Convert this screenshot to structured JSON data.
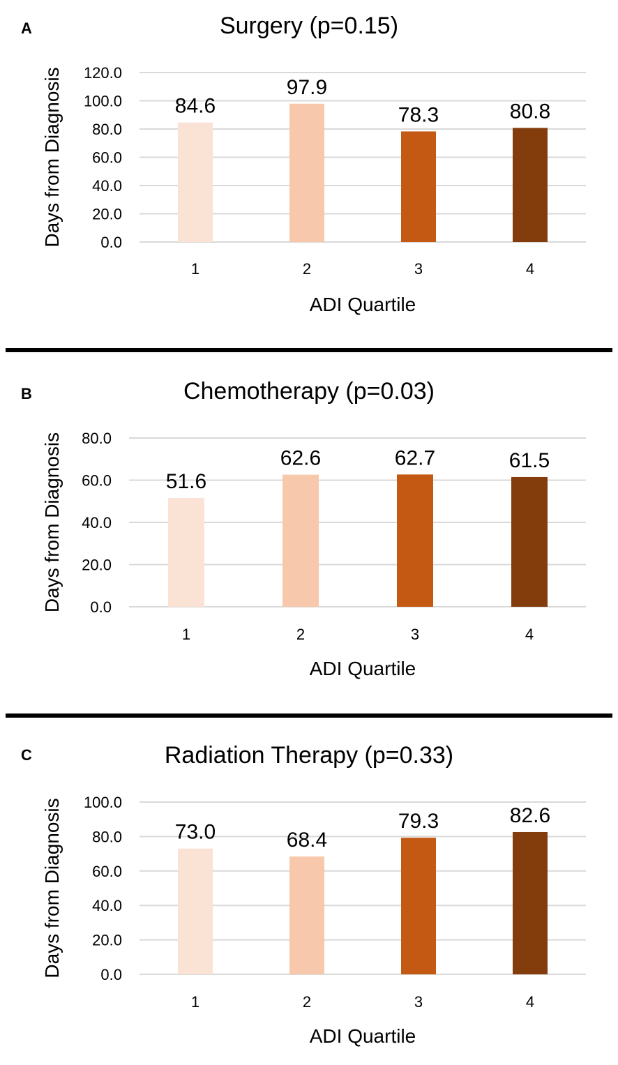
{
  "colors": {
    "q1": "#FAE2D5",
    "q2": "#F7C8AC",
    "q3": "#C45914",
    "q4": "#833C0C",
    "grid": "#D9D9D9",
    "separator": "#000000"
  },
  "chart_data": [
    {
      "type": "bar",
      "panel_label": "A",
      "title": "Surgery (p=0.15)",
      "xlabel": "ADI Quartile",
      "ylabel": "Days from Diagnosis",
      "categories": [
        "1",
        "2",
        "3",
        "4"
      ],
      "values": [
        84.6,
        97.9,
        78.3,
        80.8
      ],
      "value_labels": [
        "84.6",
        "97.9",
        "78.3",
        "80.8"
      ],
      "ylim": [
        0,
        120
      ],
      "yticks": [
        "0.0",
        "20.0",
        "40.0",
        "60.0",
        "80.0",
        "100.0",
        "120.0"
      ],
      "grid": true
    },
    {
      "type": "bar",
      "panel_label": "B",
      "title": "Chemotherapy (p=0.03)",
      "xlabel": "ADI Quartile",
      "ylabel": "Days from Diagnosis",
      "categories": [
        "1",
        "2",
        "3",
        "4"
      ],
      "values": [
        51.6,
        62.6,
        62.7,
        61.5
      ],
      "value_labels": [
        "51.6",
        "62.6",
        "62.7",
        "61.5"
      ],
      "ylim": [
        0,
        80
      ],
      "yticks": [
        "0.0",
        "20.0",
        "40.0",
        "60.0",
        "80.0"
      ],
      "grid": true
    },
    {
      "type": "bar",
      "panel_label": "C",
      "title": "Radiation Therapy (p=0.33)",
      "xlabel": "ADI Quartile",
      "ylabel": "Days from Diagnosis",
      "categories": [
        "1",
        "2",
        "3",
        "4"
      ],
      "values": [
        73.0,
        68.4,
        79.3,
        82.6
      ],
      "value_labels": [
        "73.0",
        "68.4",
        "79.3",
        "82.6"
      ],
      "ylim": [
        0,
        100
      ],
      "yticks": [
        "0.0",
        "20.0",
        "40.0",
        "60.0",
        "80.0",
        "100.0"
      ],
      "grid": true
    }
  ]
}
